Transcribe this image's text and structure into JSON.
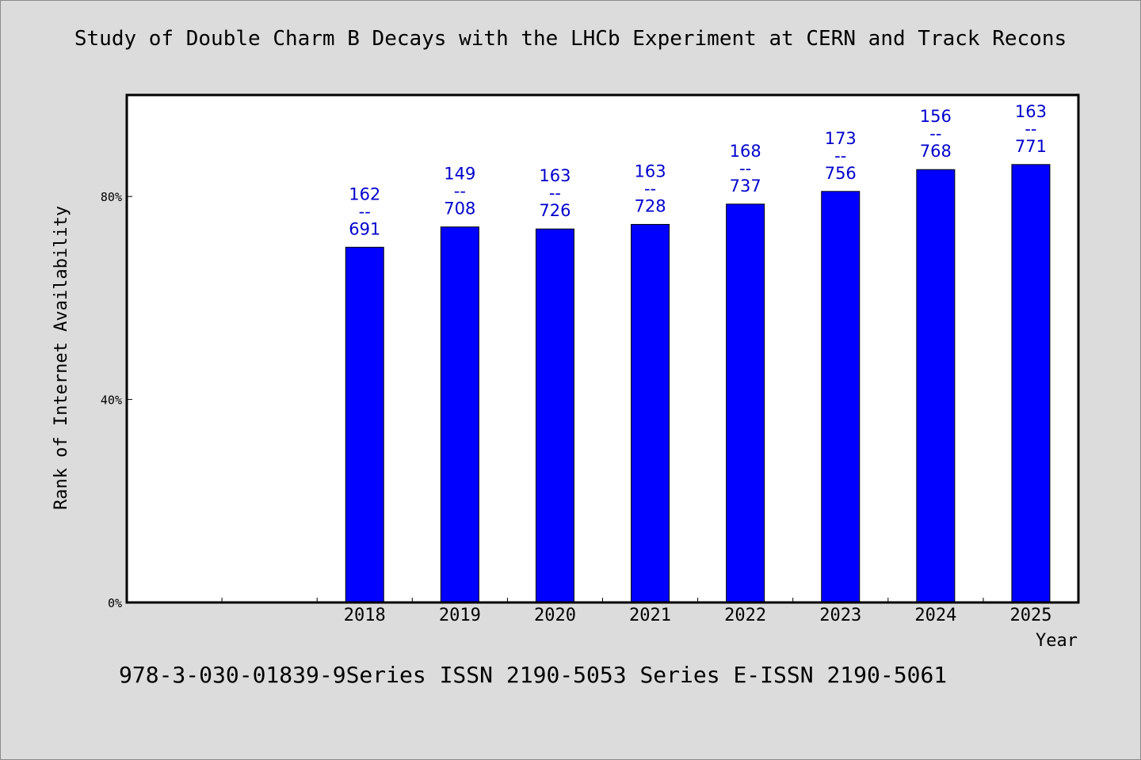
{
  "title": "Study of Double Charm B Decays with the LHCb Experiment at CERN and Track Recons",
  "footer": "978-3-030-01839-9Series ISSN 2190-5053 Series E-ISSN 2190-5061",
  "colors": {
    "background": "#dcdcdc",
    "plot_background": "#ffffff",
    "bar": "#0000ff",
    "data_label": "#0000cc"
  },
  "chart_data": {
    "type": "bar",
    "title": "Study of Double Charm B Decays with the LHCb Experiment at CERN and Track Recons",
    "xlabel": "Year",
    "ylabel": "Rank of Internet Availability",
    "categories": [
      "",
      "",
      "2018",
      "2019",
      "2020",
      "2021",
      "2022",
      "2023",
      "2024",
      "2025"
    ],
    "values": [
      null,
      null,
      70,
      74,
      73.6,
      74.5,
      78.5,
      81,
      85.3,
      86.3
    ],
    "bar_labels": [
      null,
      null,
      {
        "top": "162",
        "sep": "--",
        "bottom": "691"
      },
      {
        "top": "149",
        "sep": "--",
        "bottom": "708"
      },
      {
        "top": "163",
        "sep": "--",
        "bottom": "726"
      },
      {
        "top": "163",
        "sep": "--",
        "bottom": "728"
      },
      {
        "top": "168",
        "sep": "--",
        "bottom": "737"
      },
      {
        "top": "173",
        "sep": "--",
        "bottom": "756"
      },
      {
        "top": "156",
        "sep": "--",
        "bottom": "768"
      },
      {
        "top": "163",
        "sep": "--",
        "bottom": "771"
      }
    ],
    "ylim": [
      0,
      100
    ],
    "yticks": [
      0,
      40,
      80
    ],
    "ytick_labels": [
      "0%",
      "40%",
      "80%"
    ],
    "grid": false,
    "legend": "none"
  }
}
